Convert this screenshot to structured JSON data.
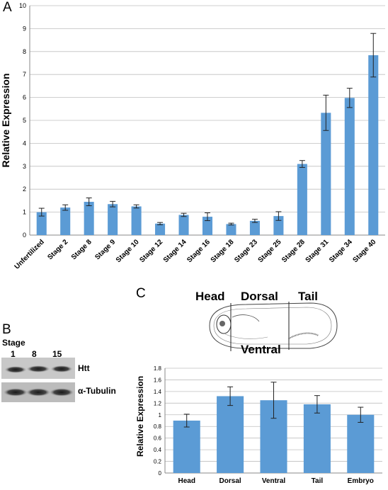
{
  "panels": {
    "a": "A",
    "b": "B",
    "c": "C"
  },
  "chart_data": [
    {
      "type": "bar",
      "panel": "A",
      "ylabel": "Relative Expression",
      "ylim": [
        0,
        10
      ],
      "yticks": [
        0,
        1,
        2,
        3,
        4,
        5,
        6,
        7,
        8,
        9,
        10
      ],
      "grid": true,
      "bar_color": "#5b9bd5",
      "categories": [
        "Unfertilized",
        "Stage 2",
        "Stage 8",
        "Stage 9",
        "Stage 10",
        "Stage 12",
        "Stage 14",
        "Stage 16",
        "Stage 18",
        "Stage 23",
        "Stage 25",
        "Stage 28",
        "Stage 31",
        "Stage 34",
        "Stage 40"
      ],
      "values": [
        1.0,
        1.2,
        1.45,
        1.35,
        1.25,
        0.5,
        0.88,
        0.8,
        0.48,
        0.62,
        0.83,
        3.1,
        5.33,
        5.98,
        7.84
      ],
      "errors": [
        0.17,
        0.12,
        0.17,
        0.12,
        0.07,
        0.05,
        0.07,
        0.17,
        0.04,
        0.07,
        0.19,
        0.15,
        0.77,
        0.42,
        0.95
      ]
    },
    {
      "type": "bar",
      "panel": "C",
      "ylabel": "Relative Expression",
      "ylim": [
        0,
        1.8
      ],
      "yticks": [
        "0",
        "0.2",
        "0.4",
        "0.6",
        "0.8",
        "1",
        "1.2",
        "1.4",
        "1.6",
        "1.8"
      ],
      "grid": true,
      "bar_color": "#5b9bd5",
      "categories": [
        "Head",
        "Dorsal",
        "Ventral",
        "Tail",
        "Embryo"
      ],
      "values": [
        0.9,
        1.32,
        1.25,
        1.18,
        1.0
      ],
      "errors": [
        0.11,
        0.16,
        0.31,
        0.15,
        0.13
      ]
    }
  ],
  "blot": {
    "stage_label": "Stage",
    "lanes": [
      "1",
      "8",
      "15"
    ],
    "bands": [
      "Htt",
      "α-Tubulin"
    ]
  },
  "embryo": {
    "head": "Head",
    "dorsal": "Dorsal",
    "tail": "Tail",
    "ventral": "Ventral"
  }
}
